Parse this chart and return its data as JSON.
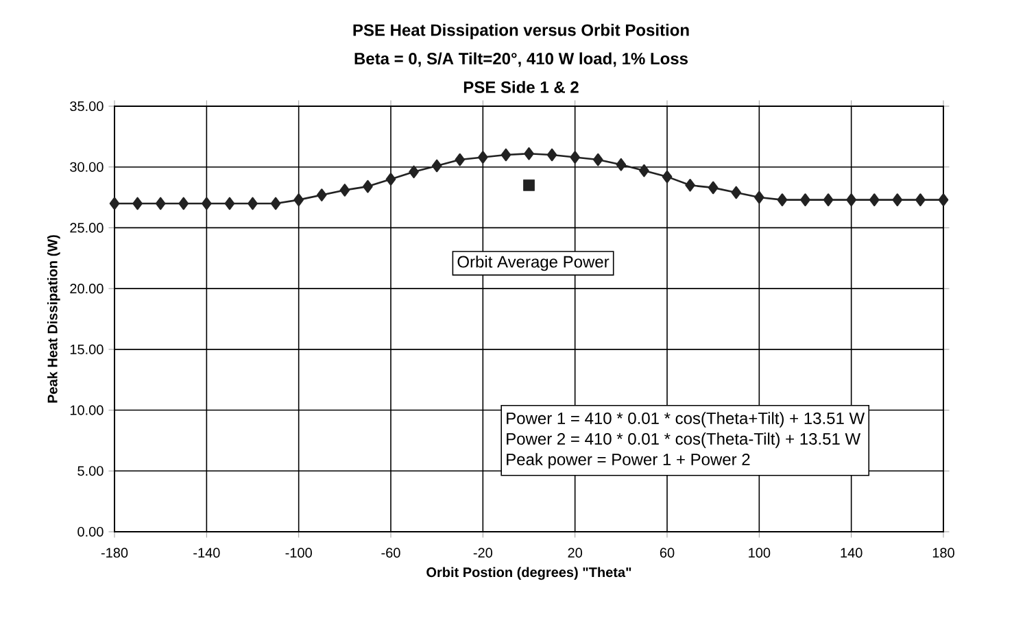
{
  "chart_data": {
    "type": "line",
    "title": "PSE Heat Dissipation versus Orbit Position",
    "subtitle": "Beta = 0, S/A Tilt=20°, 410 W load, 1% Loss",
    "xlabel": "Orbit Postion (degrees) \"Theta\"",
    "ylabel": "Peak Heat Dissipation (W)",
    "x": [
      -180,
      -170,
      -160,
      -150,
      -140,
      -130,
      -120,
      -110,
      -100,
      -90,
      -80,
      -70,
      -60,
      -50,
      -40,
      -30,
      -20,
      -10,
      0,
      10,
      20,
      30,
      40,
      50,
      60,
      70,
      80,
      90,
      100,
      110,
      120,
      130,
      140,
      150,
      160,
      170,
      180
    ],
    "series": [
      {
        "color": "#222222",
        "marker": "diamond",
        "values": [
          27.0,
          27.0,
          27.0,
          27.0,
          27.0,
          27.0,
          27.0,
          27.0,
          27.3,
          27.7,
          28.1,
          28.4,
          29.0,
          29.6,
          30.1,
          30.6,
          30.8,
          31.0,
          31.1,
          31.0,
          30.8,
          30.6,
          30.2,
          29.7,
          29.2,
          28.5,
          28.3,
          27.9,
          27.5,
          27.3,
          27.3,
          27.3,
          27.3,
          27.3,
          27.3,
          27.3,
          27.3
        ]
      },
      {
        "type": "scatter",
        "color": "#222222",
        "marker": "square",
        "x": [
          0
        ],
        "values": [
          28.5
        ]
      }
    ],
    "xlim": [
      -180,
      180
    ],
    "xticks": [
      -180,
      -140,
      -100,
      -60,
      -20,
      20,
      60,
      100,
      140,
      180
    ],
    "ylim": [
      0,
      35
    ],
    "yticks": [
      {
        "value": 0,
        "label": "0.00"
      },
      {
        "value": 5,
        "label": "5.00"
      },
      {
        "value": 10,
        "label": "10.00"
      },
      {
        "value": 15,
        "label": "15.00"
      },
      {
        "value": 20,
        "label": "20.00"
      },
      {
        "value": 25,
        "label": "25.00"
      },
      {
        "value": 30,
        "label": "30.00"
      },
      {
        "value": 35,
        "label": "35.00"
      }
    ],
    "grid": true,
    "annotations": [
      "PSE Side 1 & 2",
      "Orbit Average Power",
      "Power 1 = 410 * 0.01 * cos(Theta+Tilt) + 13.51 W",
      "Power 2 = 410 * 0.01 * cos(Theta-Tilt) + 13.51 W",
      "Peak power = Power 1 + Power 2"
    ]
  }
}
